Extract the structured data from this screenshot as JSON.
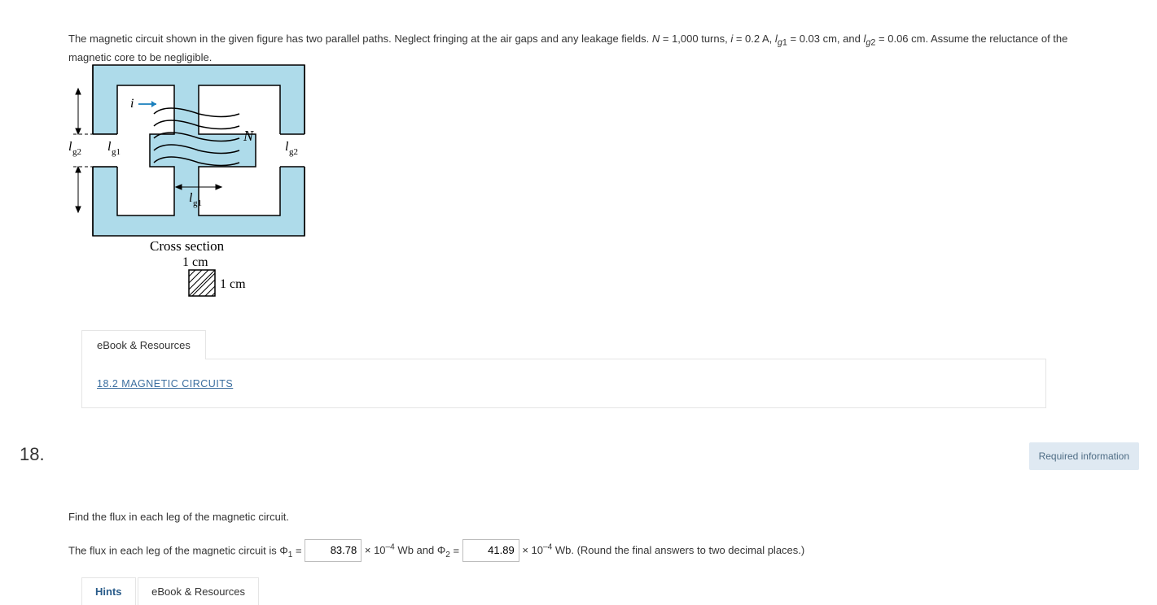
{
  "problem": {
    "text_html": "The magnetic circuit shown in the given figure has two parallel paths. Neglect fringing at the air gaps and any leakage fields. <i>N</i> = 1,000 turns, <i>i</i> = 0.2 A, <i>l<sub>g</sub></i><sub>1</sub> = 0.03 cm, and <i>l<sub>g</sub></i><sub>2</sub> = 0.06 cm. Assume the reluctance of the magnetic core to be negligible."
  },
  "figure": {
    "core_color": "#aedbea",
    "stroke": "#000000",
    "labels": {
      "i": "i",
      "N": "N",
      "lg1_left": "l",
      "lg1_left_sub": "g1",
      "lg2_left": "l",
      "lg2_left_sub": "g2",
      "lg2_right": "l",
      "lg2_right_sub": "g2",
      "lg1_bottom": "l",
      "lg1_bottom_sub": "g1",
      "cross_section": "Cross section",
      "one_cm_a": "1 cm",
      "one_cm_b": "1 cm"
    }
  },
  "resources": {
    "tab_label": "eBook & Resources",
    "link_text": "18.2 MAGNETIC CIRCUITS",
    "link_href": "#"
  },
  "question_number": "18.",
  "required_info_label": "Required information",
  "question": {
    "prompt": "Find the flux in each leg of the magnetic circuit.",
    "sentence_pre": "The flux in each leg of the magnetic circuit is Φ",
    "phi1_sub": "1",
    "eq": " = ",
    "phi1_value": "83.78",
    "mid_html": " × 10<sup>–4</sup> Wb and Φ",
    "phi2_sub": "2",
    "phi2_value": "41.89",
    "tail_html": " × 10<sup>–4</sup> Wb. (Round the final answers to two decimal places.)"
  },
  "tabs2": {
    "hints": "Hints",
    "ebook": "eBook & Resources"
  }
}
